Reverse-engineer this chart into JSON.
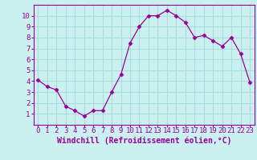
{
  "x": [
    0,
    1,
    2,
    3,
    4,
    5,
    6,
    7,
    8,
    9,
    10,
    11,
    12,
    13,
    14,
    15,
    16,
    17,
    18,
    19,
    20,
    21,
    22,
    23
  ],
  "y": [
    4.1,
    3.5,
    3.2,
    1.7,
    1.3,
    0.8,
    1.3,
    1.3,
    3.0,
    4.6,
    7.5,
    9.0,
    10.0,
    10.0,
    10.5,
    10.0,
    9.4,
    8.0,
    8.2,
    7.7,
    7.2,
    8.0,
    6.5,
    3.9
  ],
  "line_color": "#990099",
  "marker": "D",
  "marker_size": 2.5,
  "background_color": "#caf0f0",
  "grid_color": "#aadddd",
  "xlabel": "Windchill (Refroidissement éolien,°C)",
  "xlabel_color": "#990099",
  "ylim": [
    0,
    11
  ],
  "xlim": [
    -0.5,
    23.5
  ],
  "yticks": [
    1,
    2,
    3,
    4,
    5,
    6,
    7,
    8,
    9,
    10
  ],
  "xticks": [
    0,
    1,
    2,
    3,
    4,
    5,
    6,
    7,
    8,
    9,
    10,
    11,
    12,
    13,
    14,
    15,
    16,
    17,
    18,
    19,
    20,
    21,
    22,
    23
  ],
  "tick_fontsize": 6.5,
  "xlabel_fontsize": 7.0
}
